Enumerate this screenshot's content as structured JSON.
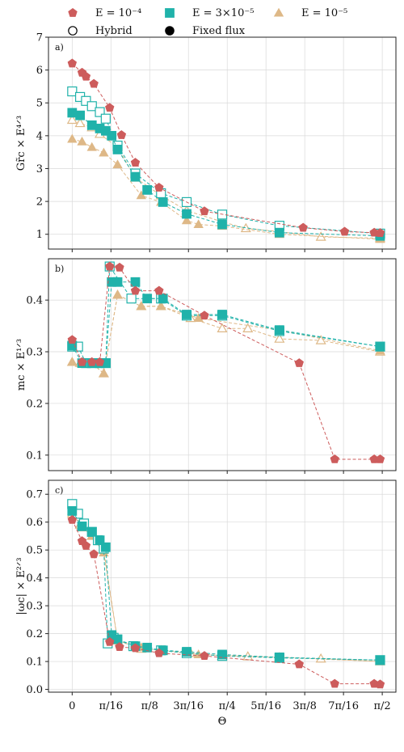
{
  "legend": {
    "series": [
      {
        "label": "E = 10⁻⁴",
        "marker": "pentagon",
        "color": "#cd5c5c"
      },
      {
        "label": "E = 3×10⁻⁵",
        "marker": "square",
        "color": "#20b2aa"
      },
      {
        "label": "E = 10⁻⁵",
        "marker": "triangle",
        "color": "#deb887"
      }
    ],
    "styles": [
      {
        "label": "Hybrid",
        "fill": "open"
      },
      {
        "label": "Fixed flux",
        "fill": "filled"
      }
    ]
  },
  "colors": {
    "E1e-4": "#cd5c5c",
    "E3e-5": "#20b2aa",
    "E1e-5": "#deb887"
  },
  "chart_data": [
    {
      "type": "scatter",
      "panel_label": "a)",
      "ylabel": "Gr̃c × E⁴ᐟ³",
      "xlabel": "",
      "xlim": [
        -0.12,
        1.64
      ],
      "ylim": [
        0.55,
        7.0
      ],
      "yticks": [
        1,
        2,
        3,
        4,
        5,
        6,
        7
      ],
      "xticks": [
        "0",
        "π/16",
        "π/8",
        "3π/16",
        "π/4",
        "5π/16",
        "3π/8",
        "7π/16",
        "π/2"
      ],
      "series": [
        {
          "E": "E1e-4",
          "style": "hybrid",
          "x": [],
          "y": []
        },
        {
          "E": "E1e-4",
          "style": "fixed",
          "x": [
            0,
            0.05,
            0.07,
            0.11,
            0.19,
            0.25,
            0.32,
            0.44,
            0.67,
            1.17,
            1.38,
            1.53,
            1.56
          ],
          "y": [
            6.2,
            5.92,
            5.8,
            5.58,
            4.85,
            4.02,
            3.18,
            2.42,
            1.7,
            1.2,
            1.08,
            1.05,
            1.04
          ]
        },
        {
          "E": "E3e-5",
          "style": "hybrid",
          "x": [
            0,
            0.04,
            0.07,
            0.1,
            0.14,
            0.17,
            0.23,
            0.32,
            0.45,
            0.58,
            0.76,
            1.05,
            1.56
          ],
          "y": [
            5.35,
            5.18,
            5.06,
            4.9,
            4.72,
            4.52,
            3.7,
            2.85,
            2.25,
            1.98,
            1.6,
            1.26,
            1.02
          ]
        },
        {
          "E": "E3e-5",
          "style": "fixed",
          "x": [
            0,
            0.04,
            0.1,
            0.14,
            0.17,
            0.2,
            0.23,
            0.32,
            0.38,
            0.46,
            0.58,
            0.76,
            1.05,
            1.56
          ],
          "y": [
            4.7,
            4.62,
            4.32,
            4.22,
            4.15,
            4.0,
            3.58,
            2.75,
            2.35,
            1.98,
            1.62,
            1.3,
            1.05,
            0.95
          ]
        },
        {
          "E": "E1e-5",
          "style": "hybrid",
          "x": [
            0,
            0.04,
            0.1,
            0.14,
            0.23,
            0.32,
            0.45,
            0.58,
            0.76,
            0.88,
            1.05,
            1.26,
            1.56
          ],
          "y": [
            4.48,
            4.38,
            4.25,
            4.05,
            3.65,
            2.72,
            2.18,
            1.72,
            1.38,
            1.18,
            1.08,
            0.92,
            0.88
          ]
        },
        {
          "E": "E1e-5",
          "style": "fixed",
          "x": [
            0,
            0.05,
            0.1,
            0.16,
            0.23,
            0.35,
            0.45,
            0.58,
            0.64,
            0.76,
            1.05,
            1.56
          ],
          "y": [
            3.9,
            3.82,
            3.65,
            3.48,
            3.12,
            2.18,
            1.98,
            1.42,
            1.3,
            1.25,
            1.0,
            0.85
          ]
        }
      ]
    },
    {
      "type": "scatter",
      "panel_label": "b)",
      "ylabel": "mc × E¹ᐟ³",
      "xlabel": "",
      "xlim": [
        -0.12,
        1.64
      ],
      "ylim": [
        0.07,
        0.48
      ],
      "yticks": [
        0.1,
        0.2,
        0.3,
        0.4
      ],
      "xticks": [
        "0",
        "π/16",
        "π/8",
        "3π/16",
        "π/4",
        "5π/16",
        "3π/8",
        "7π/16",
        "π/2"
      ],
      "series": [
        {
          "E": "E1e-4",
          "style": "hybrid",
          "x": [],
          "y": []
        },
        {
          "E": "E1e-4",
          "style": "fixed",
          "x": [
            0,
            0.05,
            0.1,
            0.14,
            0.19,
            0.24,
            0.32,
            0.44,
            0.67,
            1.15,
            1.33,
            1.53,
            1.56
          ],
          "y": [
            0.323,
            0.28,
            0.28,
            0.28,
            0.465,
            0.463,
            0.418,
            0.418,
            0.37,
            0.278,
            0.092,
            0.092,
            0.092
          ]
        },
        {
          "E": "E3e-5",
          "style": "hybrid",
          "x": [
            0,
            0.03,
            0.07,
            0.1,
            0.14,
            0.17,
            0.19,
            0.3,
            0.45,
            0.58,
            0.76,
            1.05,
            1.56
          ],
          "y": [
            0.31,
            0.31,
            0.278,
            0.278,
            0.278,
            0.278,
            0.465,
            0.403,
            0.403,
            0.37,
            0.37,
            0.34,
            0.31
          ]
        },
        {
          "E": "E3e-5",
          "style": "fixed",
          "x": [
            0,
            0.05,
            0.1,
            0.14,
            0.17,
            0.2,
            0.23,
            0.32,
            0.38,
            0.46,
            0.58,
            0.76,
            1.05,
            1.56
          ],
          "y": [
            0.312,
            0.278,
            0.278,
            0.278,
            0.278,
            0.435,
            0.435,
            0.435,
            0.403,
            0.403,
            0.372,
            0.372,
            0.342,
            0.31
          ]
        },
        {
          "E": "E1e-5",
          "style": "hybrid",
          "x": [
            0,
            0.04,
            0.1,
            0.16,
            0.23,
            0.35,
            0.45,
            0.6,
            0.76,
            0.89,
            1.05,
            1.26,
            1.56
          ],
          "y": [
            0.28,
            0.278,
            0.278,
            0.258,
            0.41,
            0.388,
            0.388,
            0.365,
            0.345,
            0.345,
            0.325,
            0.322,
            0.3
          ]
        },
        {
          "E": "E1e-5",
          "style": "fixed",
          "x": [
            0,
            0.05,
            0.1,
            0.16,
            0.23,
            0.35,
            0.45,
            0.64,
            1.05,
            1.56
          ],
          "y": [
            0.28,
            0.278,
            0.278,
            0.258,
            0.41,
            0.388,
            0.388,
            0.365,
            0.342,
            0.302
          ]
        }
      ]
    },
    {
      "type": "scatter",
      "panel_label": "c)",
      "ylabel": "|ωc| × E²ᐟ³",
      "xlabel": "Θ",
      "xlim": [
        -0.12,
        1.64
      ],
      "ylim": [
        -0.01,
        0.75
      ],
      "yticks": [
        0.0,
        0.1,
        0.2,
        0.3,
        0.4,
        0.5,
        0.6,
        0.7
      ],
      "xticks": [
        "0",
        "π/16",
        "π/8",
        "3π/16",
        "π/4",
        "5π/16",
        "3π/8",
        "7π/16",
        "π/2"
      ],
      "series": [
        {
          "E": "E1e-4",
          "style": "hybrid",
          "x": [],
          "y": []
        },
        {
          "E": "E1e-4",
          "style": "fixed",
          "x": [
            0,
            0.05,
            0.07,
            0.11,
            0.19,
            0.24,
            0.32,
            0.44,
            0.67,
            1.15,
            1.33,
            1.53,
            1.56
          ],
          "y": [
            0.608,
            0.532,
            0.515,
            0.485,
            0.17,
            0.152,
            0.148,
            0.13,
            0.12,
            0.09,
            0.02,
            0.02,
            0.018
          ]
        },
        {
          "E": "E3e-5",
          "style": "hybrid",
          "x": [
            0,
            0.03,
            0.06,
            0.1,
            0.13,
            0.16,
            0.18,
            0.21,
            0.31,
            0.45,
            0.58,
            0.76,
            1.05,
            1.56
          ],
          "y": [
            0.665,
            0.63,
            0.595,
            0.565,
            0.535,
            0.505,
            0.165,
            0.185,
            0.155,
            0.14,
            0.13,
            0.12,
            0.113,
            0.105
          ]
        },
        {
          "E": "E3e-5",
          "style": "fixed",
          "x": [
            0,
            0.05,
            0.1,
            0.14,
            0.17,
            0.2,
            0.23,
            0.32,
            0.38,
            0.46,
            0.58,
            0.76,
            1.05,
            1.56
          ],
          "y": [
            0.64,
            0.585,
            0.565,
            0.535,
            0.51,
            0.195,
            0.18,
            0.155,
            0.15,
            0.14,
            0.135,
            0.125,
            0.115,
            0.105
          ]
        },
        {
          "E": "E1e-5",
          "style": "hybrid",
          "x": [
            0,
            0.04,
            0.1,
            0.16,
            0.23,
            0.35,
            0.45,
            0.6,
            0.76,
            0.89,
            1.05,
            1.26,
            1.56
          ],
          "y": [
            0.63,
            0.59,
            0.55,
            0.5,
            0.175,
            0.145,
            0.14,
            0.13,
            0.12,
            0.118,
            0.115,
            0.11,
            0.1
          ]
        },
        {
          "E": "E1e-5",
          "style": "fixed",
          "x": [
            0,
            0.05,
            0.1,
            0.16,
            0.23,
            0.35,
            0.45,
            0.64,
            1.05,
            1.56
          ],
          "y": [
            0.64,
            0.58,
            0.55,
            0.49,
            0.175,
            0.15,
            0.14,
            0.125,
            0.115,
            0.1
          ]
        }
      ]
    }
  ]
}
